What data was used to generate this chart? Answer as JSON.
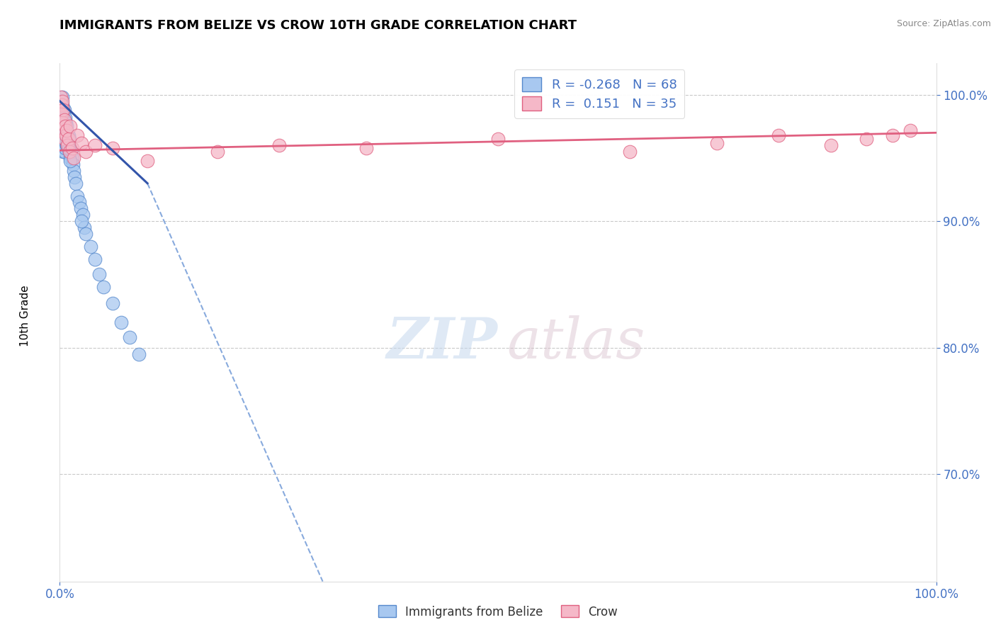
{
  "title": "IMMIGRANTS FROM BELIZE VS CROW 10TH GRADE CORRELATION CHART",
  "source": "Source: ZipAtlas.com",
  "ylabel": "10th Grade",
  "legend_R1": "-0.268",
  "legend_N1": "68",
  "legend_R2": " 0.151",
  "legend_N2": "35",
  "color_blue": "#A8C8F0",
  "color_pink": "#F5B8C8",
  "edge_blue": "#5588CC",
  "edge_pink": "#E06080",
  "line_blue_solid": "#3355AA",
  "line_blue_dash": "#88AADD",
  "line_pink": "#E06080",
  "xlim": [
    0.0,
    1.0
  ],
  "ylim": [
    0.615,
    1.025
  ],
  "y_ticks": [
    0.7,
    0.8,
    0.9,
    1.0
  ],
  "blue_x": [
    0.001,
    0.001,
    0.001,
    0.001,
    0.002,
    0.002,
    0.002,
    0.002,
    0.002,
    0.003,
    0.003,
    0.003,
    0.003,
    0.003,
    0.003,
    0.003,
    0.004,
    0.004,
    0.004,
    0.004,
    0.004,
    0.004,
    0.005,
    0.005,
    0.005,
    0.005,
    0.005,
    0.006,
    0.006,
    0.006,
    0.006,
    0.007,
    0.007,
    0.007,
    0.008,
    0.008,
    0.008,
    0.009,
    0.009,
    0.01,
    0.01,
    0.011,
    0.011,
    0.012,
    0.012,
    0.013,
    0.014,
    0.015,
    0.016,
    0.017,
    0.018,
    0.02,
    0.022,
    0.024,
    0.026,
    0.028,
    0.03,
    0.035,
    0.04,
    0.045,
    0.05,
    0.06,
    0.07,
    0.08,
    0.09,
    0.01,
    0.012,
    0.025
  ],
  "blue_y": [
    0.995,
    0.99,
    0.985,
    0.98,
    0.995,
    0.988,
    0.982,
    0.975,
    0.968,
    0.998,
    0.992,
    0.988,
    0.982,
    0.975,
    0.968,
    0.96,
    0.99,
    0.985,
    0.978,
    0.972,
    0.962,
    0.955,
    0.988,
    0.98,
    0.972,
    0.965,
    0.955,
    0.982,
    0.975,
    0.968,
    0.958,
    0.978,
    0.97,
    0.962,
    0.975,
    0.968,
    0.96,
    0.97,
    0.962,
    0.968,
    0.958,
    0.965,
    0.955,
    0.96,
    0.95,
    0.955,
    0.95,
    0.945,
    0.94,
    0.935,
    0.93,
    0.92,
    0.915,
    0.91,
    0.905,
    0.895,
    0.89,
    0.88,
    0.87,
    0.858,
    0.848,
    0.835,
    0.82,
    0.808,
    0.795,
    0.958,
    0.948,
    0.9
  ],
  "pink_x": [
    0.001,
    0.002,
    0.002,
    0.003,
    0.003,
    0.004,
    0.004,
    0.005,
    0.005,
    0.006,
    0.007,
    0.008,
    0.009,
    0.01,
    0.011,
    0.012,
    0.014,
    0.016,
    0.02,
    0.025,
    0.03,
    0.04,
    0.06,
    0.1,
    0.18,
    0.25,
    0.35,
    0.5,
    0.65,
    0.75,
    0.82,
    0.88,
    0.92,
    0.95,
    0.97
  ],
  "pink_y": [
    0.998,
    0.992,
    0.985,
    0.995,
    0.978,
    0.988,
    0.972,
    0.98,
    0.965,
    0.975,
    0.968,
    0.972,
    0.96,
    0.965,
    0.955,
    0.975,
    0.958,
    0.95,
    0.968,
    0.962,
    0.955,
    0.96,
    0.958,
    0.948,
    0.955,
    0.96,
    0.958,
    0.965,
    0.955,
    0.962,
    0.968,
    0.96,
    0.965,
    0.968,
    0.972
  ],
  "blue_line_x0": 0.0,
  "blue_line_x_solid_end": 0.1,
  "blue_line_x_dash_end": 0.3,
  "blue_line_y_start": 0.995,
  "blue_line_y_solid_end": 0.93,
  "blue_line_y_dash_end": 0.615,
  "pink_line_x0": 0.0,
  "pink_line_x1": 1.0,
  "pink_line_y0": 0.956,
  "pink_line_y1": 0.97
}
